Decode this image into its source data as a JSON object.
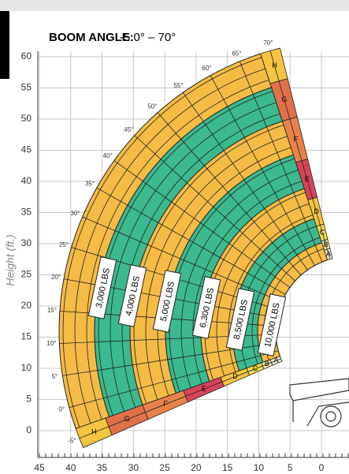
{
  "header": {
    "label": "BOOM ANGLE:",
    "range": "-5.0° – 70°"
  },
  "y_axis": {
    "title": "Height (ft.)",
    "ticks": [
      60,
      55,
      50,
      45,
      40,
      35,
      30,
      25,
      20,
      15,
      10,
      5,
      0
    ]
  },
  "x_axis": {
    "ticks": [
      45,
      40,
      35,
      30,
      25,
      20,
      15,
      10,
      5,
      0
    ]
  },
  "angles": [
    "-5°",
    "0°",
    "5°",
    "10°",
    "15°",
    "20°",
    "25°",
    "30°",
    "35°",
    "40°",
    "45°",
    "50°",
    "55°",
    "60°",
    "65°",
    "70°"
  ],
  "loads": [
    "3,000 LBS",
    "4,000 LBS",
    "5,000 LBS",
    "6,300 LBS",
    "8,500 LBS",
    "10,000 LBS"
  ],
  "extensions": [
    "H",
    "G",
    "F",
    "E",
    "D",
    "C",
    "B",
    "A"
  ]
}
